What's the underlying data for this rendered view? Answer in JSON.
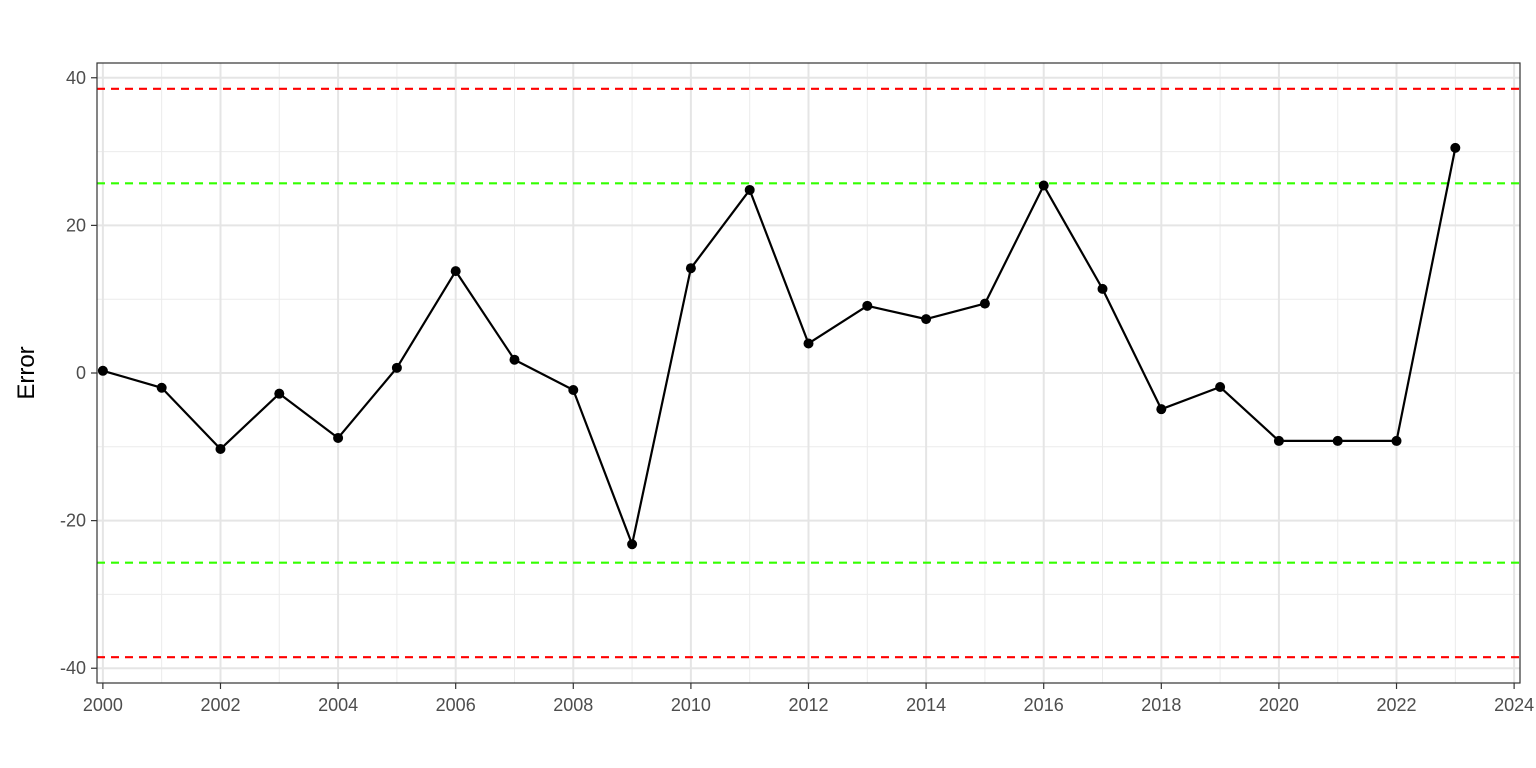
{
  "chart_data": {
    "type": "line",
    "title": "",
    "xlabel": "",
    "ylabel": "Error",
    "xlim": [
      1999.9,
      2024.1
    ],
    "ylim": [
      -42,
      42
    ],
    "x_ticks": [
      2000,
      2002,
      2004,
      2006,
      2008,
      2010,
      2012,
      2014,
      2016,
      2018,
      2020,
      2022,
      2024
    ],
    "y_ticks": [
      -40,
      -20,
      0,
      20,
      40
    ],
    "grid": true,
    "series": [
      {
        "color": "#000000",
        "x": [
          2000,
          2001,
          2002,
          2003,
          2004,
          2005,
          2006,
          2007,
          2008,
          2009,
          2010,
          2011,
          2012,
          2013,
          2014,
          2015,
          2016,
          2017,
          2018,
          2019,
          2020,
          2021,
          2022,
          2023
        ],
        "y": [
          0.3,
          -2.0,
          -10.3,
          -2.8,
          -8.8,
          0.7,
          13.8,
          1.8,
          -2.3,
          -23.2,
          14.2,
          24.8,
          4.0,
          9.1,
          7.3,
          9.4,
          25.4,
          11.4,
          -4.9,
          -1.9,
          -9.2,
          -9.2,
          -9.2,
          30.5
        ]
      }
    ],
    "reference_lines": [
      {
        "y": 38.5,
        "color": "#ff0000",
        "style": "dashed"
      },
      {
        "y": -38.5,
        "color": "#ff0000",
        "style": "dashed"
      },
      {
        "y": 25.7,
        "color": "#33ff00",
        "style": "dashed"
      },
      {
        "y": -25.7,
        "color": "#33ff00",
        "style": "dashed"
      }
    ]
  }
}
